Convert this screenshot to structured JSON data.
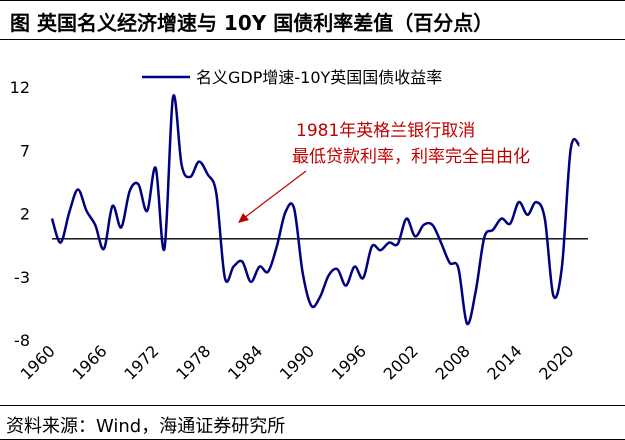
{
  "title": "图  英国名义经济增速与 10Y 国债利率差值（百分点）",
  "source": "资料来源：Wind，海通证券研究所",
  "colors": {
    "line": "#000080",
    "annotation": "#c00000",
    "axis": "#000000"
  },
  "chart_data": {
    "type": "line",
    "title": "英国名义经济增速与 10Y 国债利率差值（百分点）",
    "xlabel": "",
    "ylabel": "",
    "xlim": [
      1960,
      2022
    ],
    "ylim": [
      -8,
      12
    ],
    "yticks": [
      -8,
      -3,
      2,
      7,
      12
    ],
    "xticks": [
      1960,
      1966,
      1972,
      1978,
      1984,
      1990,
      1996,
      2002,
      2008,
      2014,
      2020
    ],
    "legend_position": "top-center",
    "series": [
      {
        "name": "名义GDP增速-10Y英国国债收益率",
        "x": [
          1960,
          1961,
          1962,
          1963,
          1964,
          1965,
          1966,
          1967,
          1968,
          1969,
          1970,
          1971,
          1972,
          1973,
          1974,
          1975,
          1976,
          1977,
          1978,
          1979,
          1980,
          1981,
          1982,
          1983,
          1984,
          1985,
          1986,
          1987,
          1988,
          1989,
          1990,
          1991,
          1992,
          1993,
          1994,
          1995,
          1996,
          1997,
          1998,
          1999,
          2000,
          2001,
          2002,
          2003,
          2004,
          2005,
          2006,
          2007,
          2008,
          2009,
          2010,
          2011,
          2012,
          2013,
          2014,
          2015,
          2016,
          2017,
          2018,
          2019,
          2020,
          2021
        ],
        "values": [
          1.6,
          -0.3,
          2.1,
          3.9,
          2.2,
          1.1,
          -0.8,
          2.6,
          0.9,
          3.8,
          4.3,
          2.2,
          5.6,
          -0.8,
          11.2,
          5.8,
          4.9,
          6.1,
          5.1,
          3.6,
          -3.1,
          -2.2,
          -1.8,
          -3.4,
          -2.2,
          -2.6,
          -0.6,
          2.1,
          2.4,
          -2.7,
          -5.3,
          -4.6,
          -2.9,
          -2.4,
          -3.7,
          -2.2,
          -3.1,
          -0.6,
          -0.9,
          -0.3,
          -0.4,
          1.6,
          0.2,
          1.1,
          1.1,
          -0.3,
          -1.9,
          -2.3,
          -6.7,
          -4.2,
          0.1,
          0.7,
          1.6,
          1.2,
          2.9,
          1.9,
          2.9,
          1.6,
          -4.5,
          -2.1,
          7.1,
          7.4
        ]
      }
    ],
    "annotation": {
      "line1": "1981年英格兰银行取消",
      "line2": "最低贷款利率，利率完全自由化",
      "points_to_year": 1981
    }
  }
}
